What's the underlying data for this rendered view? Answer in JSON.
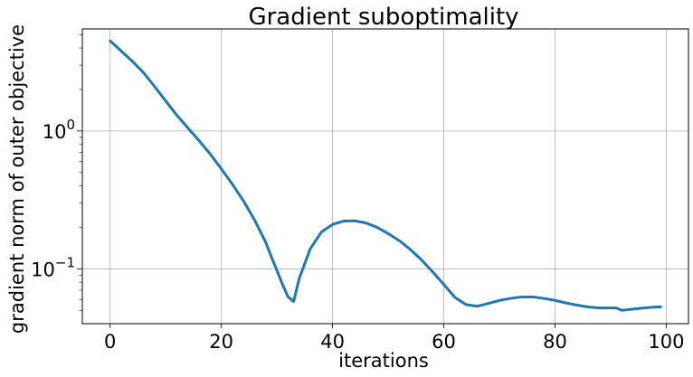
{
  "chart_data": {
    "type": "line",
    "title": "Gradient suboptimality",
    "xlabel": "iterations",
    "ylabel": "gradient norm of outer objective",
    "xlim": [
      -5,
      104
    ],
    "ylim": [
      0.04,
      5.5
    ],
    "yscale": "log",
    "grid": true,
    "x_ticks": [
      0,
      20,
      40,
      60,
      80,
      100
    ],
    "y_ticks": [
      {
        "value": 0.1,
        "base": "10",
        "exponent": "−1"
      },
      {
        "value": 1,
        "base": "10",
        "exponent": "0"
      }
    ],
    "series_color": "#1f77b4",
    "series": [
      {
        "x": [
          0,
          2,
          4,
          6,
          8,
          10,
          12,
          14,
          16,
          18,
          20,
          22,
          24,
          26,
          28,
          29,
          30,
          31,
          32,
          33,
          34,
          36,
          38,
          40,
          42,
          44,
          46,
          48,
          50,
          52,
          54,
          56,
          58,
          60,
          62,
          64,
          66,
          68,
          70,
          72,
          74,
          76,
          78,
          80,
          82,
          84,
          86,
          88,
          90,
          91,
          92,
          94,
          96,
          98,
          99
        ],
        "y": [
          4.5,
          3.8,
          3.2,
          2.65,
          2.1,
          1.65,
          1.3,
          1.05,
          0.85,
          0.68,
          0.53,
          0.41,
          0.31,
          0.225,
          0.155,
          0.122,
          0.097,
          0.077,
          0.0625,
          0.058,
          0.085,
          0.14,
          0.185,
          0.21,
          0.222,
          0.223,
          0.215,
          0.2,
          0.18,
          0.16,
          0.138,
          0.116,
          0.095,
          0.077,
          0.062,
          0.055,
          0.0535,
          0.056,
          0.059,
          0.061,
          0.0625,
          0.0625,
          0.061,
          0.059,
          0.0565,
          0.0545,
          0.0528,
          0.052,
          0.052,
          0.052,
          0.05,
          0.051,
          0.052,
          0.0528,
          0.053
        ]
      }
    ]
  }
}
